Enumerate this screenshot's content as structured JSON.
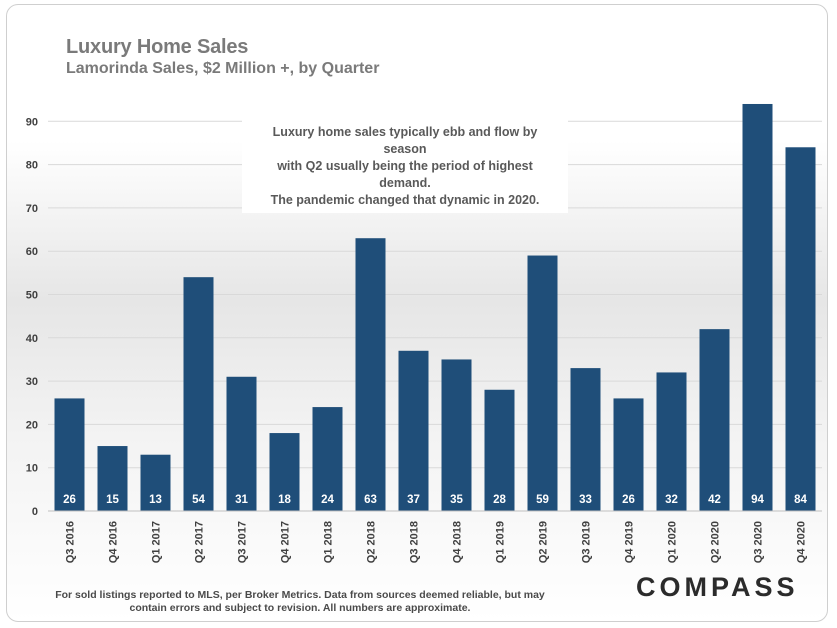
{
  "title": "Luxury Home Sales",
  "subtitle": "Lamorinda Sales, $2 Million +, by Quarter",
  "annotation": {
    "line1": "Luxury home sales typically ebb and flow by season",
    "line2": "with Q2 usually being the period of highest demand.",
    "line3": "The pandemic changed that dynamic in 2020."
  },
  "footnote": {
    "line1": "For sold listings reported to MLS, per Broker Metrics. Data from sources deemed reliable, but may",
    "line2": "contain errors and subject to revision. All numbers are approximate."
  },
  "logo": "COMPASS",
  "colors": {
    "bar": "#1f4e79",
    "bar_label": "#ffffff",
    "axis_text": "#404040",
    "grid": "#d9d9d9"
  },
  "chart_data": {
    "type": "bar",
    "categories": [
      "Q3 2016",
      "Q4 2016",
      "Q1 2017",
      "Q2 2017",
      "Q3 2017",
      "Q4 2017",
      "Q1 2018",
      "Q2 2018",
      "Q3 2018",
      "Q4 2018",
      "Q1 2019",
      "Q2 2019",
      "Q3 2019",
      "Q4 2019",
      "Q1 2020",
      "Q2 2020",
      "Q3 2020",
      "Q4 2020"
    ],
    "values": [
      26,
      15,
      13,
      54,
      31,
      18,
      24,
      63,
      37,
      35,
      28,
      59,
      33,
      26,
      32,
      42,
      94,
      84
    ],
    "ylim": [
      0,
      95
    ],
    "yticks": [
      0,
      10,
      20,
      30,
      40,
      50,
      60,
      70,
      80,
      90
    ],
    "grid": true,
    "data_labels": "inside-base"
  }
}
